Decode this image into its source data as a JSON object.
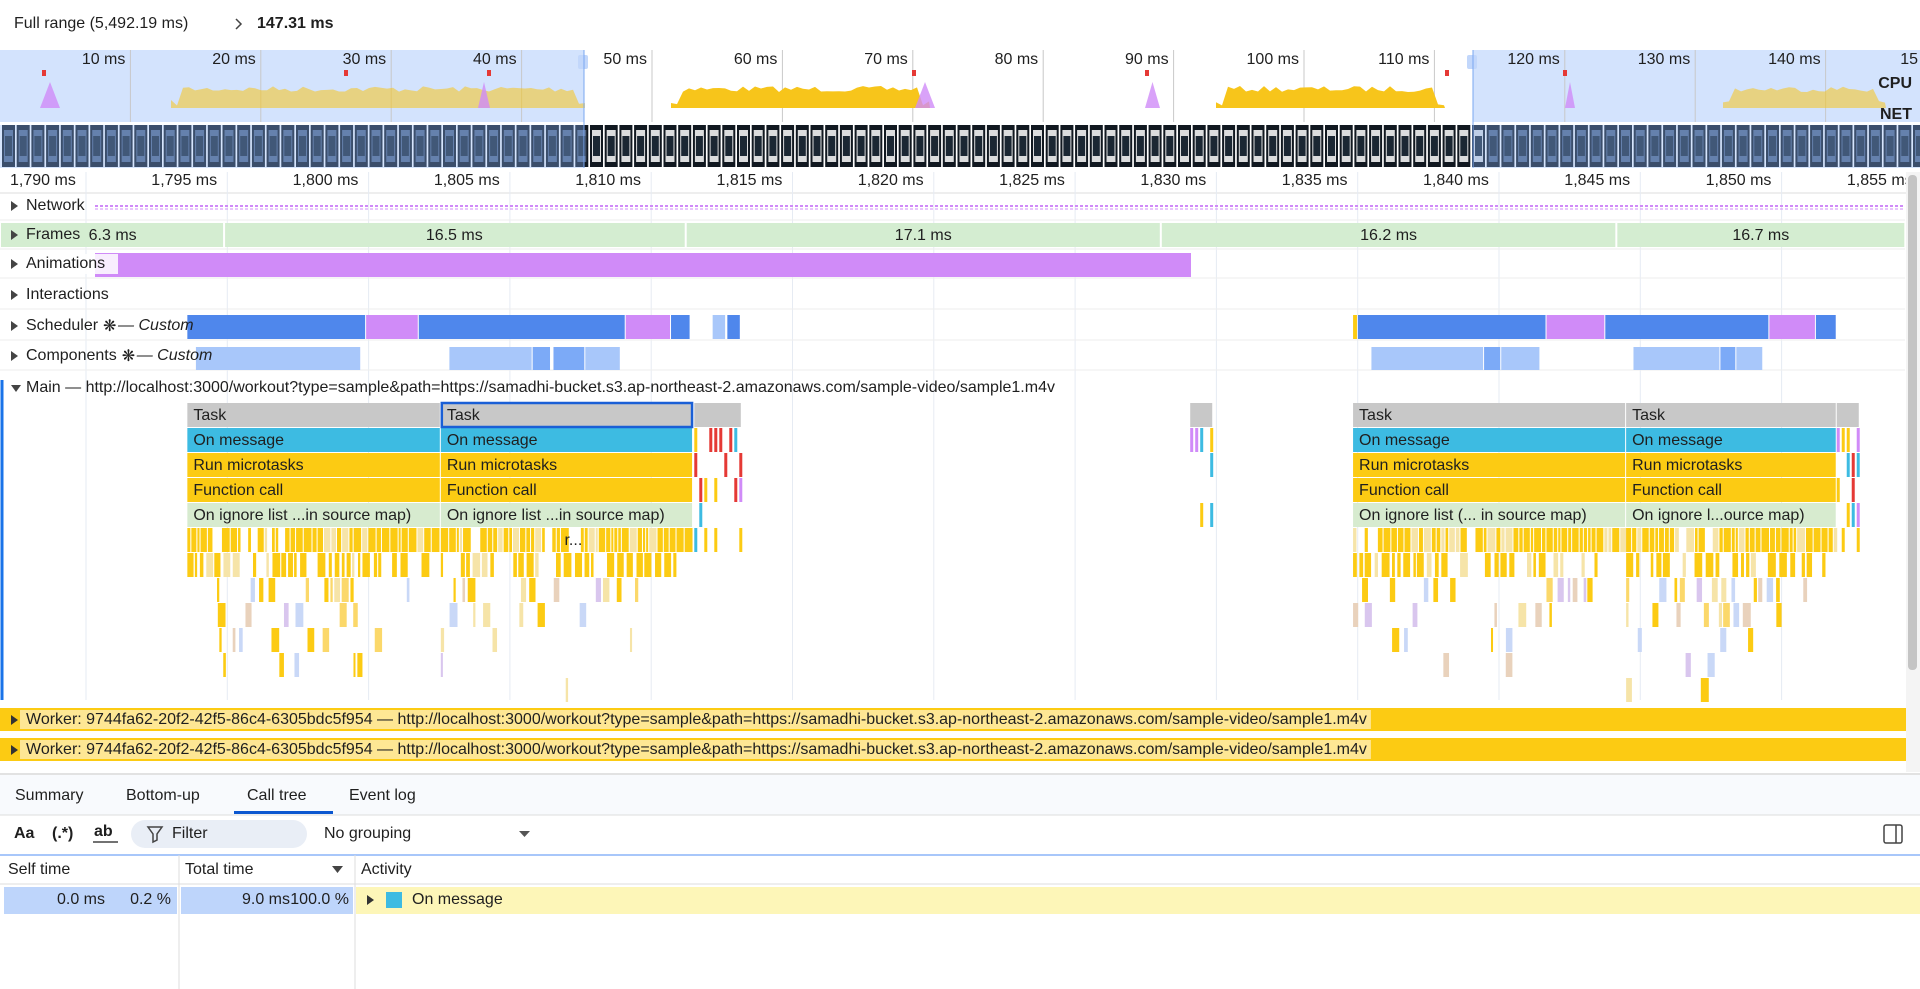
{
  "breadcrumb": {
    "full_range": "Full range (5,492.19 ms)",
    "current": "147.31 ms"
  },
  "overview": {
    "ticks": [
      "10 ms",
      "20 ms",
      "30 ms",
      "40 ms",
      "50 ms",
      "60 ms",
      "70 ms",
      "80 ms",
      "90 ms",
      "100 ms",
      "110 ms",
      "120 ms",
      "130 ms",
      "140 ms",
      "15"
    ],
    "cpu": "CPU",
    "net": "NET"
  },
  "ruler": {
    "ticks": [
      "1,790 ms",
      "1,795 ms",
      "1,800 ms",
      "1,805 ms",
      "1,810 ms",
      "1,815 ms",
      "1,820 ms",
      "1,825 ms",
      "1,830 ms",
      "1,835 ms",
      "1,840 ms",
      "1,845 ms",
      "1,850 ms",
      "1,855 ms"
    ]
  },
  "tracks": [
    {
      "name": "Network"
    },
    {
      "name": "Frames"
    },
    {
      "name": "Animations"
    },
    {
      "name": "Interactions"
    },
    {
      "name": "Scheduler",
      "suffix": "— Custom"
    },
    {
      "name": "Components",
      "suffix": "— Custom"
    },
    {
      "name": "Main — http://localhost:3000/workout?type=sample&path=https://samadhi-bucket.s3.ap-northeast-2.amazonaws.com/sample-video/sample1.m4v"
    }
  ],
  "frames": [
    "6.3 ms",
    "16.5 ms",
    "17.1 ms",
    "16.2 ms",
    "16.7 ms"
  ],
  "flame": {
    "groups": [
      {
        "labels": [
          "Task",
          "On message",
          "Run microtasks",
          "Function call",
          "On ignore list ...in source map)"
        ]
      },
      {
        "labels": [
          "Task",
          "On message",
          "Run microtasks",
          "Function call",
          "On ignore list ...in source map)"
        ],
        "extra": "r..."
      },
      {
        "labels": [
          "Task",
          "On message",
          "Run microtasks",
          "Function call",
          "On ignore list (... in source map)"
        ]
      },
      {
        "labels": [
          "Task",
          "On message",
          "Run microtasks",
          "Function call",
          "On ignore l...ource map)"
        ]
      }
    ]
  },
  "workers": [
    "Worker: 9744fa62-20f2-42f5-86c4-6305bdc5f954 — http://localhost:3000/workout?type=sample&path=https://samadhi-bucket.s3.ap-northeast-2.amazonaws.com/sample-video/sample1.m4v",
    "Worker: 9744fa62-20f2-42f5-86c4-6305bdc5f954 — http://localhost:3000/workout?type=sample&path=https://samadhi-bucket.s3.ap-northeast-2.amazonaws.com/sample-video/sample1.m4v"
  ],
  "tabs": [
    "Summary",
    "Bottom-up",
    "Call tree",
    "Event log"
  ],
  "toolbar": {
    "match_case": "Aa",
    "regex": "(.*)",
    "whole_word": "ab",
    "filter_placeholder": "Filter",
    "grouping": "No grouping"
  },
  "table": {
    "headers": [
      "Self time",
      "Total time",
      "Activity"
    ],
    "rows": [
      [
        "0.0 ms",
        "0.2 %",
        "9.0 ms",
        "100.0 %",
        "On message"
      ]
    ]
  }
}
